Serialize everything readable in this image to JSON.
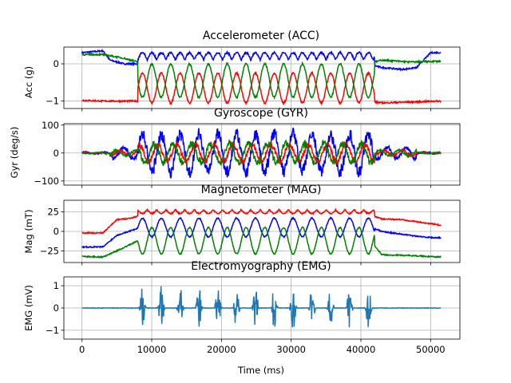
{
  "chart_data": [
    {
      "type": "line",
      "title": "Accelerometer (ACC)",
      "ylabel": "Acc (g)",
      "xlabel": "",
      "xlim": [
        -2600,
        54200
      ],
      "ylim": [
        -1.2,
        0.45
      ],
      "yticks": [
        -1,
        0
      ],
      "grid": true,
      "series": [
        {
          "color": "#0000ff",
          "x": [
            0,
            3000,
            4000,
            6000,
            9000,
            41000,
            43000,
            46000,
            48000,
            50000,
            51500
          ],
          "y": [
            0.3,
            0.35,
            0.1,
            0.0,
            0.0,
            0.0,
            -0.1,
            -0.15,
            -0.1,
            0.3,
            0.3
          ]
        },
        {
          "color": "#ff0000",
          "x": [
            0,
            3000,
            9000,
            41000,
            43000,
            51500
          ],
          "y": [
            -0.98,
            -1.0,
            -1.0,
            -1.0,
            -1.05,
            -1.0
          ]
        },
        {
          "color": "#008000",
          "x": [
            0,
            3000,
            6000,
            9000,
            41000,
            43000,
            47000,
            51500
          ],
          "y": [
            0.25,
            0.25,
            0.15,
            0.0,
            0.0,
            0.1,
            0.05,
            0.07
          ]
        }
      ]
    },
    {
      "type": "line",
      "title": "Gyroscope (GYR)",
      "ylabel": "Gyr (deg/s)",
      "xlabel": "",
      "xlim": [
        -2600,
        54200
      ],
      "ylim": [
        -115,
        105
      ],
      "yticks": [
        -100,
        0,
        100
      ],
      "grid": true,
      "series": [
        {
          "color": "#0000ff",
          "amplitude": 90
        },
        {
          "color": "#ff0000",
          "amplitude": 40
        },
        {
          "color": "#008000",
          "amplitude": 45
        }
      ]
    },
    {
      "type": "line",
      "title": "Magnetometer (MAG)",
      "ylabel": "Mag (mT)",
      "xlabel": "",
      "xlim": [
        -2600,
        54200
      ],
      "ylim": [
        -40,
        40
      ],
      "yticks": [
        -25,
        0,
        25
      ],
      "grid": true,
      "series": [
        {
          "color": "#ff0000",
          "x": [
            0,
            3000,
            5000,
            7000,
            9000,
            41000,
            43000,
            46000,
            51500
          ],
          "y": [
            -2,
            -2,
            15,
            17,
            22,
            22,
            16,
            15,
            8
          ]
        },
        {
          "color": "#0000ff",
          "x": [
            0,
            3000,
            5000,
            9000,
            41000,
            43000,
            47000,
            50000,
            51500
          ],
          "y": [
            -20,
            -20,
            -5,
            7,
            7,
            0,
            -5,
            -8,
            -8
          ]
        },
        {
          "color": "#008000",
          "x": [
            0,
            3000,
            5000,
            9000,
            41000,
            43000,
            47000,
            51500
          ],
          "y": [
            -32,
            -33,
            -25,
            -8,
            -8,
            -30,
            -31,
            -33
          ]
        }
      ]
    },
    {
      "type": "line",
      "title": "Electromyography (EMG)",
      "ylabel": "EMG (mV)",
      "xlabel": "Time (ms)",
      "xlim": [
        -2600,
        54200
      ],
      "ylim": [
        -1.4,
        1.4
      ],
      "yticks": [
        -1,
        0,
        1
      ],
      "xticks": [
        0,
        10000,
        20000,
        30000,
        40000,
        50000
      ],
      "grid": true,
      "series": [
        {
          "color": "#1f77b4",
          "amplitude": 1.25
        }
      ]
    }
  ]
}
